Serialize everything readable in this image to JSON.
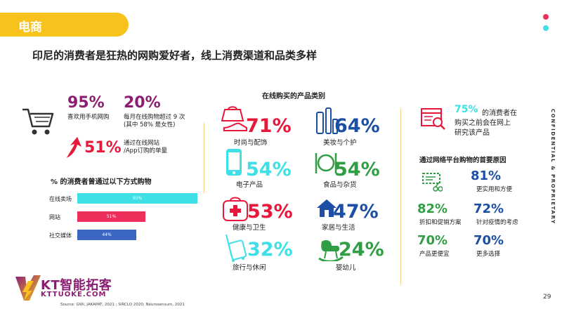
{
  "header": {
    "section_tab": "电商",
    "headline": "印尼的消费者是狂热的网购爱好者，线上消费渠道和品类多样",
    "side_text": "CONFIDENTIAL & PROPRIETARY",
    "page_number": "29"
  },
  "colors": {
    "accent_yellow": "#f7c21c",
    "cyan": "#3ee0e6",
    "pink": "#ef2f5b",
    "blue": "#3b66c4",
    "magenta": "#8b1d73",
    "red": "#e6193a",
    "green": "#2f9e44",
    "dark_blue": "#1c4fa3"
  },
  "left": {
    "stats": [
      {
        "value": "95%",
        "label": "喜欢用手机网购"
      },
      {
        "value": "20%",
        "label_lines": [
          "每月在线购物超过 9 次",
          "(其中 58% 是女性)"
        ]
      },
      {
        "value": "51%",
        "label_lines": [
          "通过在线网站",
          "/App订购的单量"
        ]
      }
    ],
    "channel_title": "% 的消费者曾通过以下方式购物",
    "chart_data": {
      "type": "bar",
      "categories": [
        "在线卖场",
        "网站",
        "社交媒体"
      ],
      "values": [
        90,
        51,
        44
      ],
      "value_labels": [
        "90%",
        "51%",
        "44%"
      ],
      "colors": [
        "#3ee0e6",
        "#ef2f5b",
        "#3b66c4"
      ],
      "xlim": [
        0,
        100
      ]
    }
  },
  "middle": {
    "title": "在线购买的产品类别",
    "categories": [
      {
        "pct": "71%",
        "label": "时尚与配饰",
        "color": "#e6193a",
        "icon": "shoe-bag-icon"
      },
      {
        "pct": "64%",
        "label": "美妆与个护",
        "color": "#1c4fa3",
        "icon": "cosmetics-icon"
      },
      {
        "pct": "54%",
        "label": "电子产品",
        "color": "#3ee0e6",
        "icon": "smartphone-icon"
      },
      {
        "pct": "54%",
        "label": "食品与杂货",
        "color": "#2f9e44",
        "icon": "plate-cutlery-icon"
      },
      {
        "pct": "53%",
        "label": "健康与卫生",
        "color": "#e6193a",
        "icon": "health-cross-icon"
      },
      {
        "pct": "47%",
        "label": "家居与生活",
        "color": "#1c4fa3",
        "icon": "house-icon"
      },
      {
        "pct": "32%",
        "label": "旅行与休闲",
        "color": "#3ee0e6",
        "icon": "suitcase-icon"
      },
      {
        "pct": "24%",
        "label": "婴幼儿",
        "color": "#2f9e44",
        "icon": "rocking-horse-icon"
      }
    ]
  },
  "right": {
    "research_pct": "75%",
    "research_text_1": "的消费者在",
    "research_text_2": "购买之前会在网上",
    "research_text_3": "研究该产品",
    "reasons_title": "通过网络平台购物的首要原因",
    "reasons": [
      {
        "pct": "81%",
        "label": "更实用和方便"
      },
      {
        "pct": "82%",
        "label": "折扣和促销方案"
      },
      {
        "pct": "72%",
        "label": "针对疫情的考虑"
      },
      {
        "pct": "70%",
        "label": "产品更便宜"
      },
      {
        "pct": "70%",
        "label": "更多选择"
      }
    ]
  },
  "footer": {
    "logo_text": "KT智能拓客",
    "logo_domain": "KTTUOKE.COM",
    "source": "Source: GWI, JAKAPAT, 2021 ; SIRCLO 2020; Neurosensum, 2021"
  }
}
